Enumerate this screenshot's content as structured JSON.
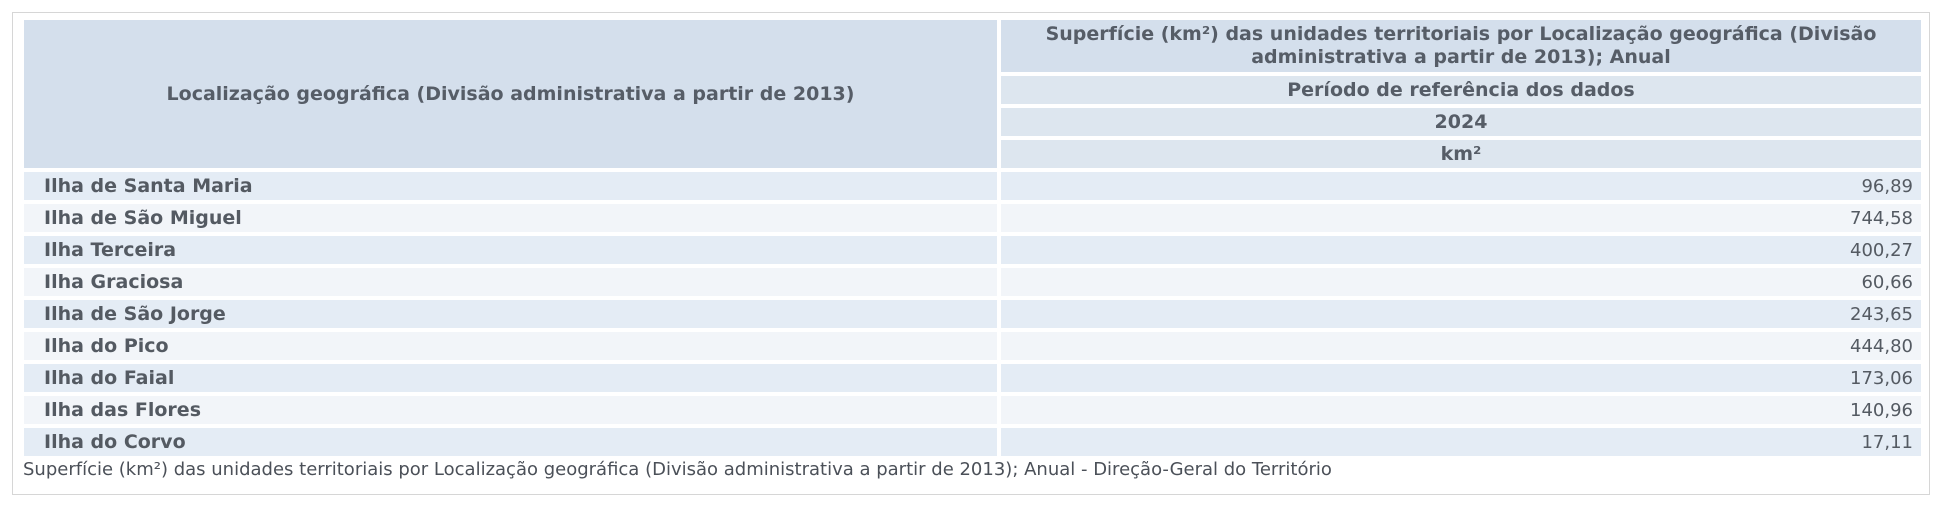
{
  "table": {
    "row_header": "Localização geográfica (Divisão administrativa a partir de 2013)",
    "column_title": "Superfície (km²) das unidades territoriais por Localização geográfica (Divisão administrativa a partir de 2013); Anual",
    "period_label": "Período de referência dos dados",
    "year": "2024",
    "unit": "km²",
    "rows": [
      {
        "name": "Ilha de Santa Maria",
        "value": "96,89"
      },
      {
        "name": "Ilha de São Miguel",
        "value": "744,58"
      },
      {
        "name": "Ilha Terceira",
        "value": "400,27"
      },
      {
        "name": "Ilha Graciosa",
        "value": "60,66"
      },
      {
        "name": "Ilha de São Jorge",
        "value": "243,65"
      },
      {
        "name": "Ilha do Pico",
        "value": "444,80"
      },
      {
        "name": "Ilha do Faial",
        "value": "173,06"
      },
      {
        "name": "Ilha das Flores",
        "value": "140,96"
      },
      {
        "name": "Ilha do Corvo",
        "value": "17,11"
      }
    ]
  },
  "source": "Superfície (km²) das unidades territoriais por Localização geográfica (Divisão administrativa a partir de 2013); Anual - Direção-Geral do Território"
}
